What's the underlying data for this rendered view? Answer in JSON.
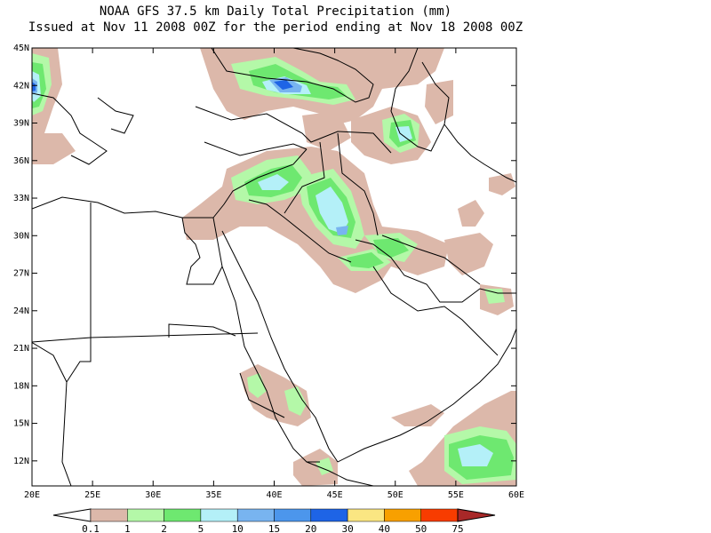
{
  "title": {
    "line1": "NOAA GFS 37.5 km Daily Total Precipitation (mm)",
    "line2": "Issued at Nov 11 2008 00Z for the period ending at Nov 18 2008 00Z"
  },
  "map": {
    "region": "Middle East / Northeast Africa",
    "lon_range": [
      20,
      60
    ],
    "lat_range": [
      10,
      45
    ],
    "lat_ticks": [
      {
        "value": 45,
        "label": "45N"
      },
      {
        "value": 42,
        "label": "42N"
      },
      {
        "value": 39,
        "label": "39N"
      },
      {
        "value": 36,
        "label": "36N"
      },
      {
        "value": 33,
        "label": "33N"
      },
      {
        "value": 30,
        "label": "30N"
      },
      {
        "value": 27,
        "label": "27N"
      },
      {
        "value": 24,
        "label": "24N"
      },
      {
        "value": 21,
        "label": "21N"
      },
      {
        "value": 18,
        "label": "18N"
      },
      {
        "value": 15,
        "label": "15N"
      },
      {
        "value": 12,
        "label": "12N"
      }
    ],
    "lon_ticks": [
      {
        "value": 20,
        "label": "20E"
      },
      {
        "value": 25,
        "label": "25E"
      },
      {
        "value": 30,
        "label": "30E"
      },
      {
        "value": 35,
        "label": "35E"
      },
      {
        "value": 40,
        "label": "40E"
      },
      {
        "value": 45,
        "label": "45E"
      },
      {
        "value": 50,
        "label": "50E"
      },
      {
        "value": 55,
        "label": "55E"
      },
      {
        "value": 60,
        "label": "60E"
      }
    ]
  },
  "colorbar": {
    "labels": [
      "0.1",
      "1",
      "2",
      "5",
      "10",
      "15",
      "20",
      "30",
      "40",
      "50",
      "75"
    ],
    "colors": [
      "#dcb8aa",
      "#b4f8a8",
      "#6ee870",
      "#b4f0f8",
      "#78b4f0",
      "#4c96ec",
      "#1e64e6",
      "#fae682",
      "#f8a000",
      "#f83c00",
      "#a82828"
    ]
  }
}
